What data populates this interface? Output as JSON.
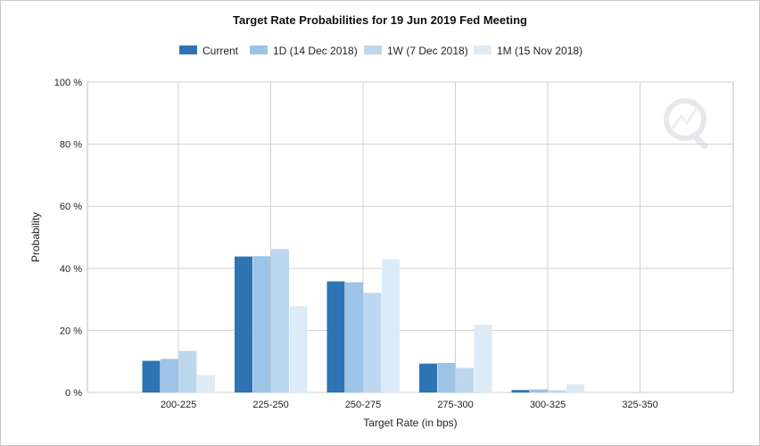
{
  "chart_data": {
    "type": "bar",
    "title": "Target Rate Probabilities for 19 Jun 2019 Fed Meeting",
    "xlabel": "Target Rate (in bps)",
    "ylabel": "Probability",
    "categories": [
      "200-225",
      "225-250",
      "250-275",
      "275-300",
      "300-325",
      "325-350"
    ],
    "y_ticks": [
      "0 %",
      "20 %",
      "40 %",
      "60 %",
      "80 %",
      "100 %"
    ],
    "ylim": [
      0,
      100
    ],
    "grid": true,
    "legend_position": "top",
    "series": [
      {
        "name": "Current",
        "color": "#2e74b5",
        "values": [
          10.2,
          43.8,
          35.8,
          9.3,
          0.8,
          0.0
        ]
      },
      {
        "name": "1D (14 Dec 2018)",
        "color": "#9dc3e6",
        "values": [
          10.8,
          43.9,
          35.5,
          9.5,
          1.0,
          0.0
        ]
      },
      {
        "name": "1W (7 Dec 2018)",
        "color": "#bdd7ee",
        "values": [
          13.4,
          46.2,
          32.1,
          7.9,
          0.7,
          0.0
        ]
      },
      {
        "name": "1M (15 Nov 2018)",
        "color": "#ddebf7",
        "values": [
          5.6,
          27.8,
          43.0,
          21.8,
          2.7,
          0.3
        ]
      }
    ]
  }
}
